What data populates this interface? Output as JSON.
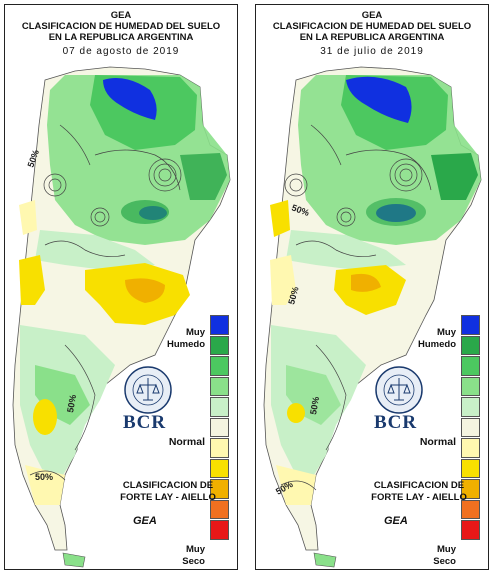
{
  "panels": [
    {
      "header": "GEA",
      "title_line1": "CLASIFICACION DE HUMEDAD DEL SUELO",
      "title_line2": "EN LA REPUBLICA ARGENTINA",
      "date": "07 de agosto de 2019",
      "contour_labels": [
        "50%",
        "50%",
        "50%"
      ]
    },
    {
      "header": "GEA",
      "title_line1": "CLASIFICACION DE HUMEDAD DEL SUELO",
      "title_line2": "EN LA REPUBLICA ARGENTINA",
      "date": "31 de julio de 2019",
      "contour_labels": [
        "50%",
        "50%",
        "50%",
        "50%"
      ]
    }
  ],
  "legend": {
    "top_label_1": "Muy",
    "top_label_2": "Humedo",
    "mid_label": "Normal",
    "bottom_label_1": "Muy",
    "bottom_label_2": "Seco",
    "colors": [
      "#1030e0",
      "#2aa84a",
      "#4cc860",
      "#8ae08a",
      "#c8f0c8",
      "#f4f4e0",
      "#fff8b0",
      "#f8e000",
      "#f0b000",
      "#f07020",
      "#e81818"
    ]
  },
  "branding": {
    "bcr": "BCR",
    "seal_text": "BOLSA DE COMERCIO DE ROSARIO",
    "method_line1": "CLASIFICACION DE",
    "method_line2": "FORTE LAY - AIELLO",
    "gea_mark": "GEA"
  }
}
